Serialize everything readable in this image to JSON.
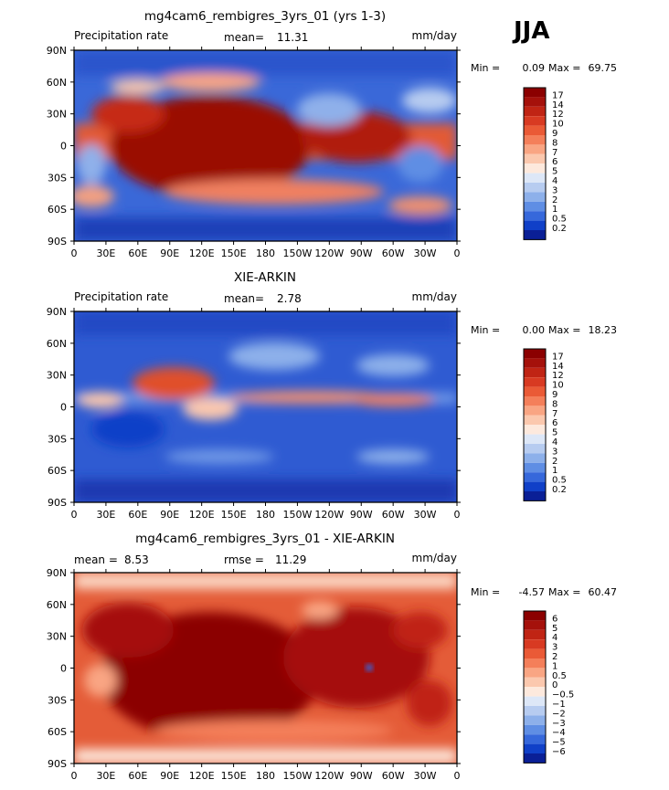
{
  "season": "JJA",
  "chart_data": [
    {
      "type": "heatmap",
      "title": "mg4cam6_rembigres_3yrs_01 (yrs 1-3)",
      "left_label": "Precipitation rate",
      "center_label": "mean=",
      "center_value": "11.31",
      "right_label": "",
      "right_value": "",
      "units": "mm/day",
      "min_label": "Min =",
      "min_value": "0.09",
      "max_label": "Max =",
      "max_value": "69.75",
      "lat_ticks": [
        "90N",
        "60N",
        "30N",
        "0",
        "30S",
        "60S",
        "90S"
      ],
      "lon_ticks": [
        "0",
        "30E",
        "60E",
        "90E",
        "120E",
        "150E",
        "180",
        "150W",
        "120W",
        "90W",
        "60W",
        "30W",
        "0"
      ],
      "colorbar_labels": [
        "17",
        "14",
        "12",
        "10",
        "9",
        "8",
        "7",
        "6",
        "5",
        "4",
        "3",
        "2",
        "1",
        "0.5",
        "0.2"
      ],
      "colorbar_colors": [
        "#8b0000",
        "#a5110b",
        "#c02414",
        "#d83a22",
        "#ea5a36",
        "#f47f5a",
        "#f9a583",
        "#fbc8ae",
        "#fde9dd",
        "#dde7f7",
        "#b7ccf0",
        "#8db0ea",
        "#5f8ee4",
        "#3668db",
        "#1040c8",
        "#0a1f96"
      ]
    },
    {
      "type": "heatmap",
      "title": "XIE-ARKIN",
      "left_label": "Precipitation rate",
      "center_label": "mean=",
      "center_value": "2.78",
      "right_label": "",
      "right_value": "",
      "units": "mm/day",
      "min_label": "Min =",
      "min_value": "0.00",
      "max_label": "Max =",
      "max_value": "18.23",
      "lat_ticks": [
        "90N",
        "60N",
        "30N",
        "0",
        "30S",
        "60S",
        "90S"
      ],
      "lon_ticks": [
        "0",
        "30E",
        "60E",
        "90E",
        "120E",
        "150E",
        "180",
        "150W",
        "120W",
        "90W",
        "60W",
        "30W",
        "0"
      ],
      "colorbar_labels": [
        "17",
        "14",
        "12",
        "10",
        "9",
        "8",
        "7",
        "6",
        "5",
        "4",
        "3",
        "2",
        "1",
        "0.5",
        "0.2"
      ],
      "colorbar_colors": [
        "#8b0000",
        "#a5110b",
        "#c02414",
        "#d83a22",
        "#ea5a36",
        "#f47f5a",
        "#f9a583",
        "#fbc8ae",
        "#fde9dd",
        "#dde7f7",
        "#b7ccf0",
        "#8db0ea",
        "#5f8ee4",
        "#3668db",
        "#1040c8",
        "#0a1f96"
      ]
    },
    {
      "type": "heatmap",
      "title": "mg4cam6_rembigres_3yrs_01 - XIE-ARKIN",
      "left_label": "mean =",
      "left_value": "8.53",
      "center_label": "rmse =",
      "center_value": "11.29",
      "units": "mm/day",
      "min_label": "Min =",
      "min_value": "-4.57",
      "max_label": "Max =",
      "max_value": "60.47",
      "lat_ticks": [
        "90N",
        "60N",
        "30N",
        "0",
        "30S",
        "60S",
        "90S"
      ],
      "lon_ticks": [
        "0",
        "30E",
        "60E",
        "90E",
        "120E",
        "150E",
        "180",
        "150W",
        "120W",
        "90W",
        "60W",
        "30W",
        "0"
      ],
      "colorbar_labels": [
        "6",
        "5",
        "4",
        "3",
        "2",
        "1",
        "0.5",
        "0",
        "−0.5",
        "−1",
        "−2",
        "−3",
        "−4",
        "−5",
        "−6"
      ],
      "colorbar_colors": [
        "#8b0000",
        "#a5110b",
        "#c02414",
        "#d83a22",
        "#ea5a36",
        "#f47f5a",
        "#f9a583",
        "#fbc8ae",
        "#fde9dd",
        "#dde7f7",
        "#b7ccf0",
        "#8db0ea",
        "#5f8ee4",
        "#3668db",
        "#1040c8",
        "#0a1f96"
      ]
    }
  ]
}
